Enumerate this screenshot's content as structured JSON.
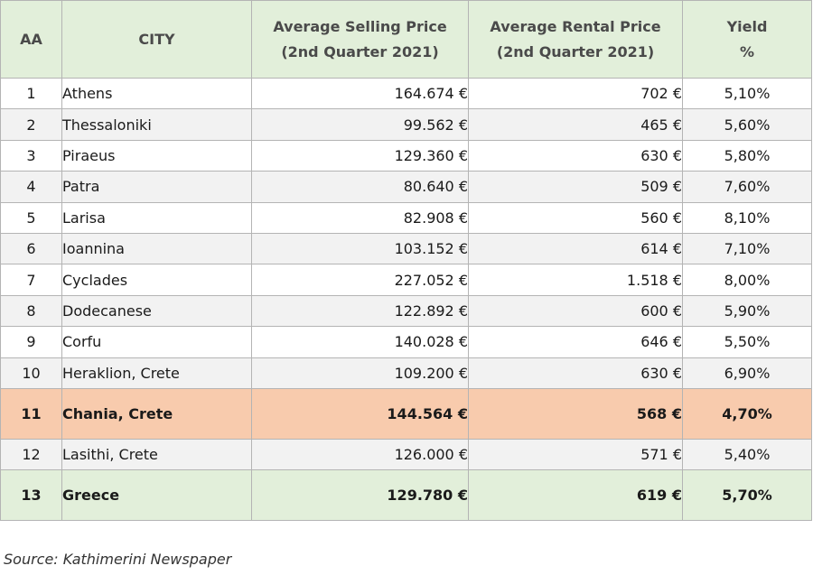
{
  "table": {
    "headers": {
      "aa": "AA",
      "city": "CITY",
      "selling_line1": "Average Selling Price",
      "selling_line2": "(2nd Quarter 2021)",
      "rental_line1": "Average Rental Price",
      "rental_line2": "(2nd Quarter 2021)",
      "yield_line1": "Yield",
      "yield_line2": "%"
    },
    "rows": [
      {
        "aa": "1",
        "city": "Athens",
        "selling": "164.674 €",
        "rental": "702 €",
        "yield": "5,10%"
      },
      {
        "aa": "2",
        "city": "Thessaloniki",
        "selling": "99.562 €",
        "rental": "465 €",
        "yield": "5,60%"
      },
      {
        "aa": "3",
        "city": "Piraeus",
        "selling": "129.360 €",
        "rental": "630 €",
        "yield": "5,80%"
      },
      {
        "aa": "4",
        "city": "Patra",
        "selling": "80.640 €",
        "rental": "509 €",
        "yield": "7,60%"
      },
      {
        "aa": "5",
        "city": "Larisa",
        "selling": "82.908 €",
        "rental": "560 €",
        "yield": "8,10%"
      },
      {
        "aa": "6",
        "city": "Ioannina",
        "selling": "103.152 €",
        "rental": "614 €",
        "yield": "7,10%"
      },
      {
        "aa": "7",
        "city": "Cyclades",
        "selling": "227.052 €",
        "rental": "1.518 €",
        "yield": "8,00%"
      },
      {
        "aa": "8",
        "city": "Dodecanese",
        "selling": "122.892 €",
        "rental": "600 €",
        "yield": "5,90%"
      },
      {
        "aa": "9",
        "city": "Corfu",
        "selling": "140.028 €",
        "rental": "646 €",
        "yield": "5,50%"
      },
      {
        "aa": "10",
        "city": "Heraklion, Crete",
        "selling": "109.200 €",
        "rental": "630 €",
        "yield": "6,90%"
      },
      {
        "aa": "11",
        "city": "Chania, Crete",
        "selling": "144.564 €",
        "rental": "568 €",
        "yield": "4,70%"
      },
      {
        "aa": "12",
        "city": "Lasithi, Crete",
        "selling": "126.000 €",
        "rental": "571 €",
        "yield": "5,40%"
      },
      {
        "aa": "13",
        "city": "Greece",
        "selling": "129.780 €",
        "rental": "619 €",
        "yield": "5,70%"
      }
    ]
  },
  "source": "Source: Kathimerini Newspaper",
  "colors": {
    "header_bg": "#e2efda",
    "highlight_bg": "#f8cbad",
    "total_bg": "#e2efda",
    "stripe_bg": "#f2f2f2"
  }
}
